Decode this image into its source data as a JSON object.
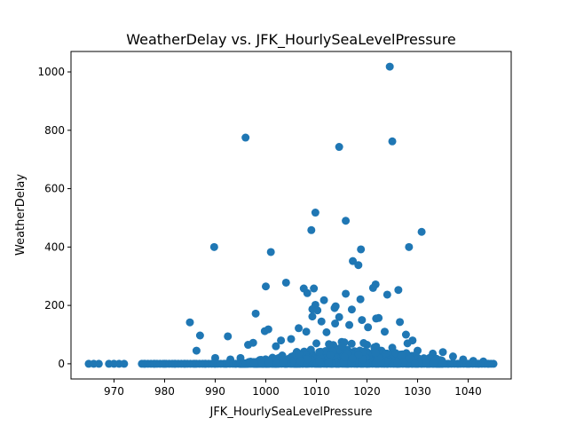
{
  "chart_data": {
    "type": "scatter",
    "title": "WeatherDelay vs. JFK_HourlySeaLevelPressure",
    "xlabel": "JFK_HourlySeaLevelPressure",
    "ylabel": "WeatherDelay",
    "xlim": [
      961.5,
      1048.5
    ],
    "ylim": [
      -52,
      1070
    ],
    "x_ticks": [
      970,
      980,
      990,
      1000,
      1010,
      1020,
      1030,
      1040
    ],
    "y_ticks": [
      0,
      200,
      400,
      600,
      800,
      1000
    ],
    "grid": false,
    "legend": "none",
    "colors": {
      "marker": "#1f77b4"
    },
    "series": [
      {
        "points": [
          [
            965,
            0
          ],
          [
            966,
            0
          ],
          [
            967,
            0
          ],
          [
            969,
            0
          ],
          [
            970,
            0
          ],
          [
            971,
            0
          ],
          [
            972,
            0
          ],
          [
            976,
            0
          ],
          [
            978,
            0
          ],
          [
            980,
            0
          ],
          [
            982,
            0
          ],
          [
            984,
            0
          ],
          [
            986,
            0
          ],
          [
            988,
            0
          ],
          [
            990,
            0
          ],
          [
            992,
            0
          ],
          [
            994,
            0
          ],
          [
            996,
            0
          ],
          [
            998,
            0
          ],
          [
            1000,
            0
          ],
          [
            1002,
            0
          ],
          [
            1004,
            0
          ],
          [
            1006,
            0
          ],
          [
            1008,
            0
          ],
          [
            1010,
            0
          ],
          [
            1012,
            0
          ],
          [
            1014,
            0
          ],
          [
            1016,
            0
          ],
          [
            1018,
            0
          ],
          [
            1020,
            0
          ],
          [
            1022,
            0
          ],
          [
            1024,
            0
          ],
          [
            1026,
            0
          ],
          [
            1028,
            0
          ],
          [
            1030,
            0
          ],
          [
            1032,
            0
          ],
          [
            1034,
            0
          ],
          [
            1036,
            0
          ],
          [
            1038,
            0
          ],
          [
            1040,
            0
          ],
          [
            1042,
            0
          ],
          [
            1044,
            0
          ],
          [
            1045,
            0
          ],
          [
            1024.5,
            1018
          ],
          [
            996,
            775
          ],
          [
            1025,
            762
          ],
          [
            1014.5,
            743
          ],
          [
            1009.8,
            518
          ],
          [
            1015.8,
            490
          ],
          [
            1009,
            458
          ],
          [
            1030.8,
            452
          ],
          [
            989.8,
            400
          ],
          [
            1028.3,
            400
          ],
          [
            1018.8,
            392
          ],
          [
            1001,
            383
          ],
          [
            1017.2,
            352
          ],
          [
            1018.3,
            338
          ],
          [
            1004,
            278
          ],
          [
            1021.7,
            272
          ],
          [
            1000,
            265
          ],
          [
            1021.2,
            260
          ],
          [
            1007.5,
            258
          ],
          [
            1009.5,
            258
          ],
          [
            1026.2,
            253
          ],
          [
            1008.2,
            242
          ],
          [
            1015.8,
            240
          ],
          [
            1024,
            237
          ],
          [
            1018.7,
            221
          ],
          [
            1011.5,
            218
          ],
          [
            1009.8,
            202
          ],
          [
            1013.8,
            197
          ],
          [
            1013.6,
            191
          ],
          [
            1009.2,
            187
          ],
          [
            1017,
            186
          ],
          [
            1010.2,
            183
          ],
          [
            998,
            172
          ],
          [
            1009.2,
            162
          ],
          [
            1022.3,
            157
          ],
          [
            1021.8,
            155
          ],
          [
            1026.5,
            143
          ],
          [
            985,
            142
          ],
          [
            1013.7,
            138
          ],
          [
            1016.5,
            133
          ],
          [
            1027.7,
            100
          ],
          [
            987,
            97
          ],
          [
            992.5,
            94
          ],
          [
            1000.5,
            118
          ],
          [
            999.8,
            112
          ],
          [
            1006.5,
            122
          ],
          [
            1008,
            110
          ],
          [
            1012,
            108
          ],
          [
            1005,
            85
          ],
          [
            1003,
            80
          ],
          [
            997.5,
            72
          ],
          [
            996.5,
            65
          ],
          [
            1019,
            150
          ],
          [
            1020.2,
            125
          ],
          [
            1014.5,
            160
          ],
          [
            1011,
            145
          ],
          [
            1023.5,
            110
          ],
          [
            1029,
            80
          ],
          [
            1028,
            70
          ],
          [
            1002,
            60
          ],
          [
            1010,
            70
          ],
          [
            1015,
            75
          ],
          [
            1020,
            65
          ],
          [
            1025,
            55
          ],
          [
            1030,
            45
          ],
          [
            986.3,
            45
          ],
          [
            990,
            20
          ],
          [
            993,
            15
          ],
          [
            995,
            20
          ],
          [
            1033,
            35
          ],
          [
            1035,
            40
          ],
          [
            1037,
            25
          ],
          [
            1039,
            15
          ],
          [
            1041,
            10
          ],
          [
            1043,
            8
          ]
        ]
      }
    ]
  }
}
